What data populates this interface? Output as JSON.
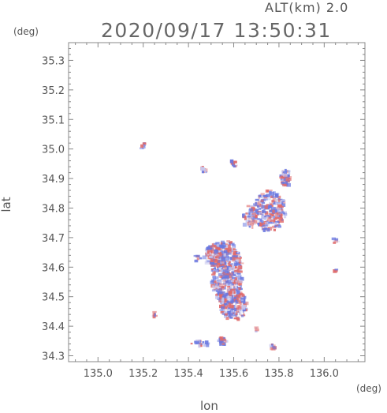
{
  "header": {
    "alt_label": "ALT(km) 2.0",
    "timestamp": "2020/09/17 13:50:31"
  },
  "axes": {
    "x_unit": "(deg)",
    "y_unit": "(deg)"
  },
  "chart_data": {
    "type": "scatter",
    "title": "",
    "xlabel": "lon",
    "ylabel": "lat",
    "xlim": [
      134.87,
      136.18
    ],
    "ylim": [
      34.28,
      35.36
    ],
    "xticks": [
      135.0,
      135.2,
      135.4,
      135.6,
      135.8,
      136.0
    ],
    "xtick_labels": [
      "135.0",
      "135.2",
      "135.4",
      "135.6",
      "135.8",
      "136.0"
    ],
    "yticks": [
      34.3,
      34.4,
      34.5,
      34.6,
      34.7,
      34.8,
      34.9,
      35.0,
      35.1,
      35.2,
      35.3
    ],
    "ytick_labels": [
      "34.3",
      "34.4",
      "34.5",
      "34.6",
      "34.7",
      "34.8",
      "34.9",
      "35.0",
      "35.1",
      "35.2",
      "35.3"
    ],
    "grid": false,
    "colors": {
      "positive": "#e06a6a",
      "negative": "#6a78e0",
      "neutral": "#c8c8ee"
    },
    "clusters": [
      {
        "lon": 135.57,
        "lat": 34.58,
        "rlon": 0.07,
        "rlat": 0.11,
        "n": 420
      },
      {
        "lon": 135.6,
        "lat": 34.47,
        "rlon": 0.06,
        "rlat": 0.05,
        "n": 160
      },
      {
        "lon": 135.52,
        "lat": 34.64,
        "rlon": 0.05,
        "rlat": 0.04,
        "n": 120
      },
      {
        "lon": 135.76,
        "lat": 34.79,
        "rlon": 0.07,
        "rlat": 0.07,
        "n": 220
      },
      {
        "lon": 135.83,
        "lat": 34.9,
        "rlon": 0.02,
        "rlat": 0.03,
        "n": 50
      },
      {
        "lon": 135.67,
        "lat": 34.77,
        "rlon": 0.03,
        "rlat": 0.04,
        "n": 45
      },
      {
        "lon": 135.47,
        "lat": 34.93,
        "rlon": 0.015,
        "rlat": 0.01,
        "n": 12
      },
      {
        "lon": 135.6,
        "lat": 34.95,
        "rlon": 0.015,
        "rlat": 0.012,
        "n": 10
      },
      {
        "lon": 135.2,
        "lat": 35.01,
        "rlon": 0.01,
        "rlat": 0.01,
        "n": 8
      },
      {
        "lon": 135.25,
        "lat": 34.44,
        "rlon": 0.012,
        "rlat": 0.01,
        "n": 8
      },
      {
        "lon": 135.45,
        "lat": 34.34,
        "rlon": 0.04,
        "rlat": 0.01,
        "n": 20
      },
      {
        "lon": 135.55,
        "lat": 34.35,
        "rlon": 0.018,
        "rlat": 0.014,
        "n": 25
      },
      {
        "lon": 135.77,
        "lat": 34.33,
        "rlon": 0.012,
        "rlat": 0.01,
        "n": 10
      },
      {
        "lon": 135.7,
        "lat": 34.39,
        "rlon": 0.008,
        "rlat": 0.008,
        "n": 4
      },
      {
        "lon": 136.05,
        "lat": 34.69,
        "rlon": 0.01,
        "rlat": 0.012,
        "n": 6
      },
      {
        "lon": 136.05,
        "lat": 34.59,
        "rlon": 0.005,
        "rlat": 0.005,
        "n": 3
      },
      {
        "lon": 135.44,
        "lat": 34.63,
        "rlon": 0.015,
        "rlat": 0.01,
        "n": 8
      }
    ]
  }
}
